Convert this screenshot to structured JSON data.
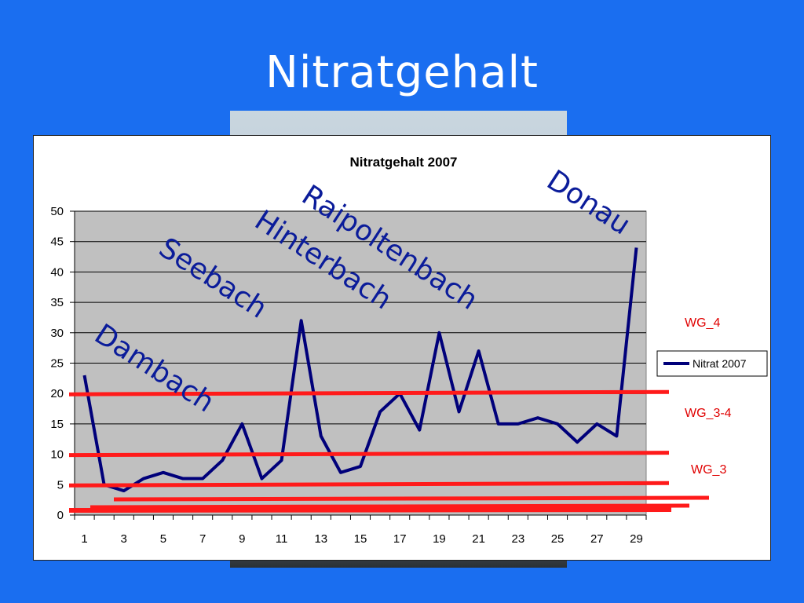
{
  "slide": {
    "title": "Nitratgehalt"
  },
  "chart_data": {
    "type": "line",
    "title": "Nitratgehalt 2007",
    "x": [
      1,
      2,
      3,
      4,
      5,
      6,
      7,
      8,
      9,
      10,
      11,
      12,
      13,
      14,
      15,
      16,
      17,
      18,
      19,
      20,
      21,
      22,
      23,
      24,
      25,
      26,
      27,
      28,
      29
    ],
    "x_tick_labels": [
      "1",
      "3",
      "5",
      "7",
      "9",
      "11",
      "13",
      "15",
      "17",
      "19",
      "21",
      "23",
      "25",
      "27",
      "29"
    ],
    "series": [
      {
        "name": "Nitrat 2007",
        "values": [
          23,
          5,
          4,
          6,
          7,
          6,
          6,
          9,
          15,
          6,
          9,
          32,
          13,
          7,
          8,
          17,
          20,
          14,
          30,
          17,
          27,
          15,
          15,
          16,
          15,
          12,
          15,
          13,
          44
        ]
      }
    ],
    "ylim": [
      0,
      50
    ],
    "y_ticks": [
      "0",
      "5",
      "10",
      "15",
      "20",
      "25",
      "30",
      "35",
      "40",
      "45",
      "50"
    ],
    "grid": true,
    "legend": "right",
    "colors": {
      "series": "#00007a",
      "plot_bg": "#c0c0c0",
      "threshold": "#ff1a1a",
      "handwriting": "#0b1c9a"
    },
    "thresholds": [
      {
        "value": 20,
        "label": "WG_4"
      },
      {
        "value": 10,
        "label": "WG_3-4"
      },
      {
        "value": 5,
        "label": "WG_3"
      }
    ],
    "annotations": [
      "Dambach",
      "Seebach",
      "Hinterbach",
      "Raipoltenbach",
      "Donau"
    ]
  }
}
